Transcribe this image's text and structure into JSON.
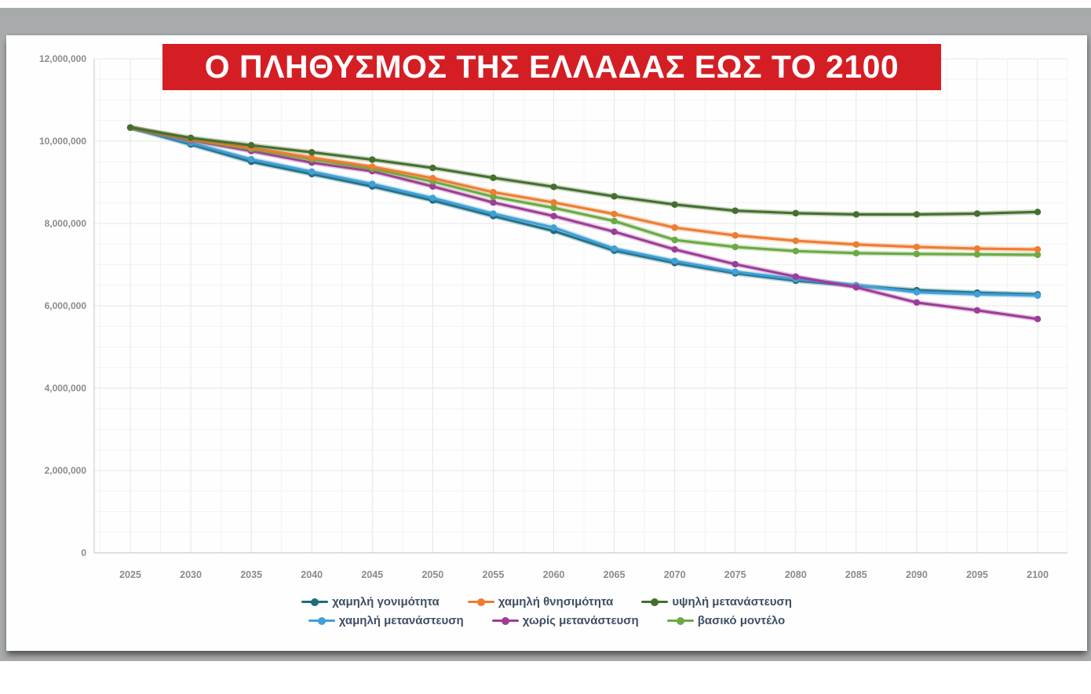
{
  "colors": {
    "banner_red": "#d41e24",
    "banner_text": "#ffffff",
    "backdrop_gray": "#a8abab",
    "card_white": "#fefefe",
    "axis_text_gray": "#8b8b8b",
    "legend_text": "#3f4f63"
  },
  "chart_data": {
    "type": "line",
    "title": "Ο ΠΛΗΘΥΣΜΟΣ ΤΗΣ ΕΛΛΑΔΑΣ ΕΩΣ ΤΟ 2100",
    "xlabel": "",
    "ylabel": "",
    "x": [
      2025,
      2030,
      2035,
      2040,
      2045,
      2050,
      2055,
      2060,
      2065,
      2070,
      2075,
      2080,
      2085,
      2090,
      2095,
      2100
    ],
    "x_tick_labels": [
      "2025",
      "2030",
      "2035",
      "2040",
      "2045",
      "2050",
      "2055",
      "2060",
      "2065",
      "2070",
      "2075",
      "2080",
      "2085",
      "2090",
      "2095",
      "2100"
    ],
    "y_tick_labels": [
      "0",
      "2,000,000",
      "4,000,000",
      "6,000,000",
      "8,000,000",
      "10,000,000",
      "12,000,000"
    ],
    "ylim": [
      0,
      12000000
    ],
    "grid": true,
    "legend_position": "bottom",
    "series": [
      {
        "name": "χαμηλή γονιμότητα",
        "color": "#1f6c7c",
        "values": [
          10330000,
          9920000,
          9500000,
          9200000,
          8900000,
          8560000,
          8180000,
          7820000,
          7340000,
          7040000,
          6790000,
          6610000,
          6490000,
          6380000,
          6320000,
          6280000
        ]
      },
      {
        "name": "χαμηλή θνησιμότητα",
        "color": "#ed7d31",
        "values": [
          10330000,
          10050000,
          9840000,
          9600000,
          9380000,
          9100000,
          8760000,
          8510000,
          8230000,
          7900000,
          7710000,
          7580000,
          7490000,
          7430000,
          7390000,
          7370000
        ]
      },
      {
        "name": "υψηλή μετανάστευση",
        "color": "#456f2f",
        "values": [
          10330000,
          10080000,
          9900000,
          9730000,
          9550000,
          9350000,
          9110000,
          8890000,
          8660000,
          8460000,
          8310000,
          8250000,
          8220000,
          8220000,
          8240000,
          8280000
        ]
      },
      {
        "name": "χαμηλή μετανάστευση",
        "color": "#41a0d8",
        "values": [
          10330000,
          9960000,
          9560000,
          9260000,
          8960000,
          8620000,
          8240000,
          7900000,
          7390000,
          7090000,
          6830000,
          6650000,
          6500000,
          6330000,
          6280000,
          6250000
        ]
      },
      {
        "name": "χωρίς μετανάστευση",
        "color": "#9d3d97",
        "values": [
          10330000,
          10020000,
          9760000,
          9480000,
          9270000,
          8900000,
          8510000,
          8180000,
          7800000,
          7370000,
          7010000,
          6710000,
          6450000,
          6080000,
          5890000,
          5680000
        ]
      },
      {
        "name": "βασικό μοντέλο",
        "color": "#6aaa45",
        "values": [
          10330000,
          10040000,
          9810000,
          9560000,
          9330000,
          9020000,
          8650000,
          8380000,
          8060000,
          7600000,
          7430000,
          7330000,
          7280000,
          7260000,
          7250000,
          7240000
        ]
      }
    ],
    "legend_rows": [
      [
        0,
        1,
        2
      ],
      [
        3,
        4,
        5
      ]
    ]
  }
}
